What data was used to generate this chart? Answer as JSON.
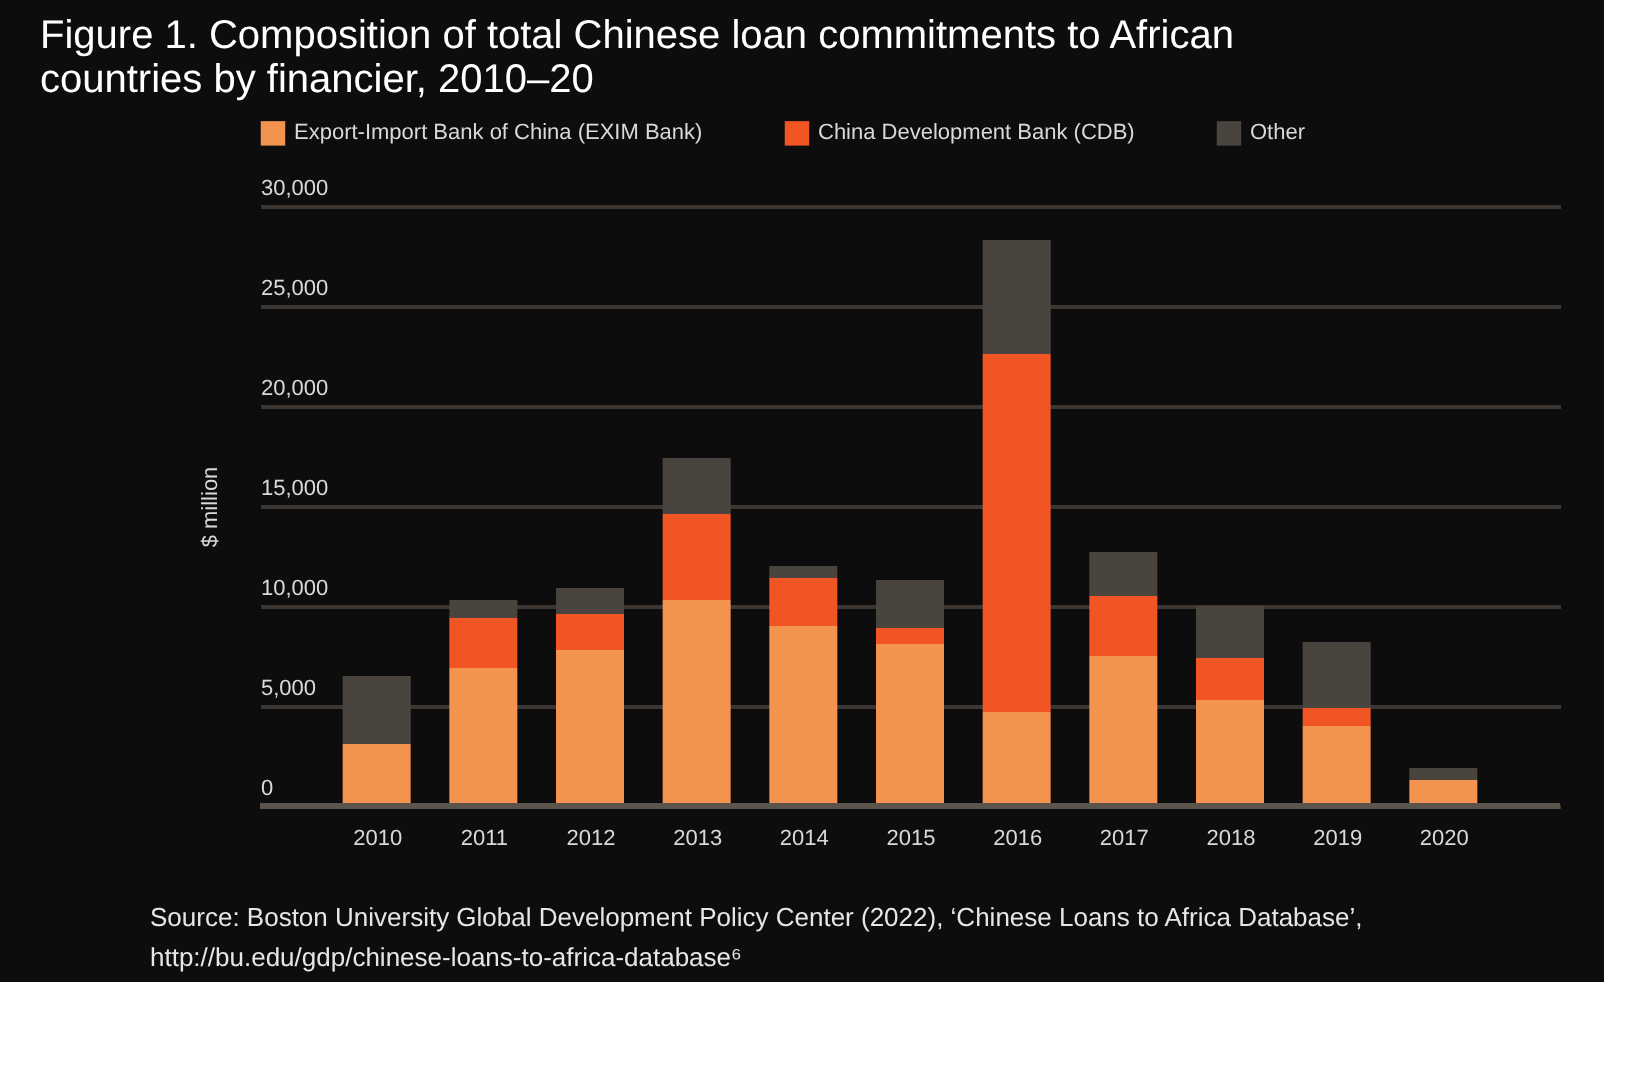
{
  "chart_data": {
    "type": "bar",
    "stacked": true,
    "title": "Figure 1. Composition of total Chinese loan commitments to African countries by financier, 2010–20",
    "ylabel": "$ million",
    "categories": [
      "2010",
      "2011",
      "2012",
      "2013",
      "2014",
      "2015",
      "2016",
      "2017",
      "2018",
      "2019",
      "2020"
    ],
    "series": [
      {
        "name": "Export-Import Bank of China (EXIM Bank)",
        "color": "#f29450",
        "values": [
          3100,
          6900,
          7800,
          10300,
          9000,
          8100,
          4700,
          7500,
          5300,
          4000,
          1300
        ]
      },
      {
        "name": "China Development Bank (CDB)",
        "color": "#f05523",
        "values": [
          0,
          2500,
          1800,
          4300,
          2400,
          800,
          17900,
          3000,
          2100,
          900,
          0
        ]
      },
      {
        "name": "Other",
        "color": "#4a443e",
        "values": [
          3400,
          900,
          1300,
          2800,
          600,
          2400,
          5700,
          2200,
          2600,
          3300,
          600
        ]
      }
    ],
    "ylim": [
      0,
      30000
    ],
    "yticks": [
      0,
      {
        "value": 5000,
        "label": "5,000"
      },
      {
        "value": 10000,
        "label": "10,000"
      },
      {
        "value": 15000,
        "label": "15,000"
      },
      {
        "value": 20000,
        "label": "20,000"
      },
      {
        "value": 25000,
        "label": "25,000"
      },
      {
        "value": 30000,
        "label": "30,000"
      }
    ],
    "grid": "y",
    "legend": "top",
    "annotations": [
      "Source: Boston University Global Development Policy Center (2022), ‘Chinese Loans to Africa Database’,",
      "http://bu.edu/gdp/chinese-loans-to-africa-database⁶"
    ]
  }
}
